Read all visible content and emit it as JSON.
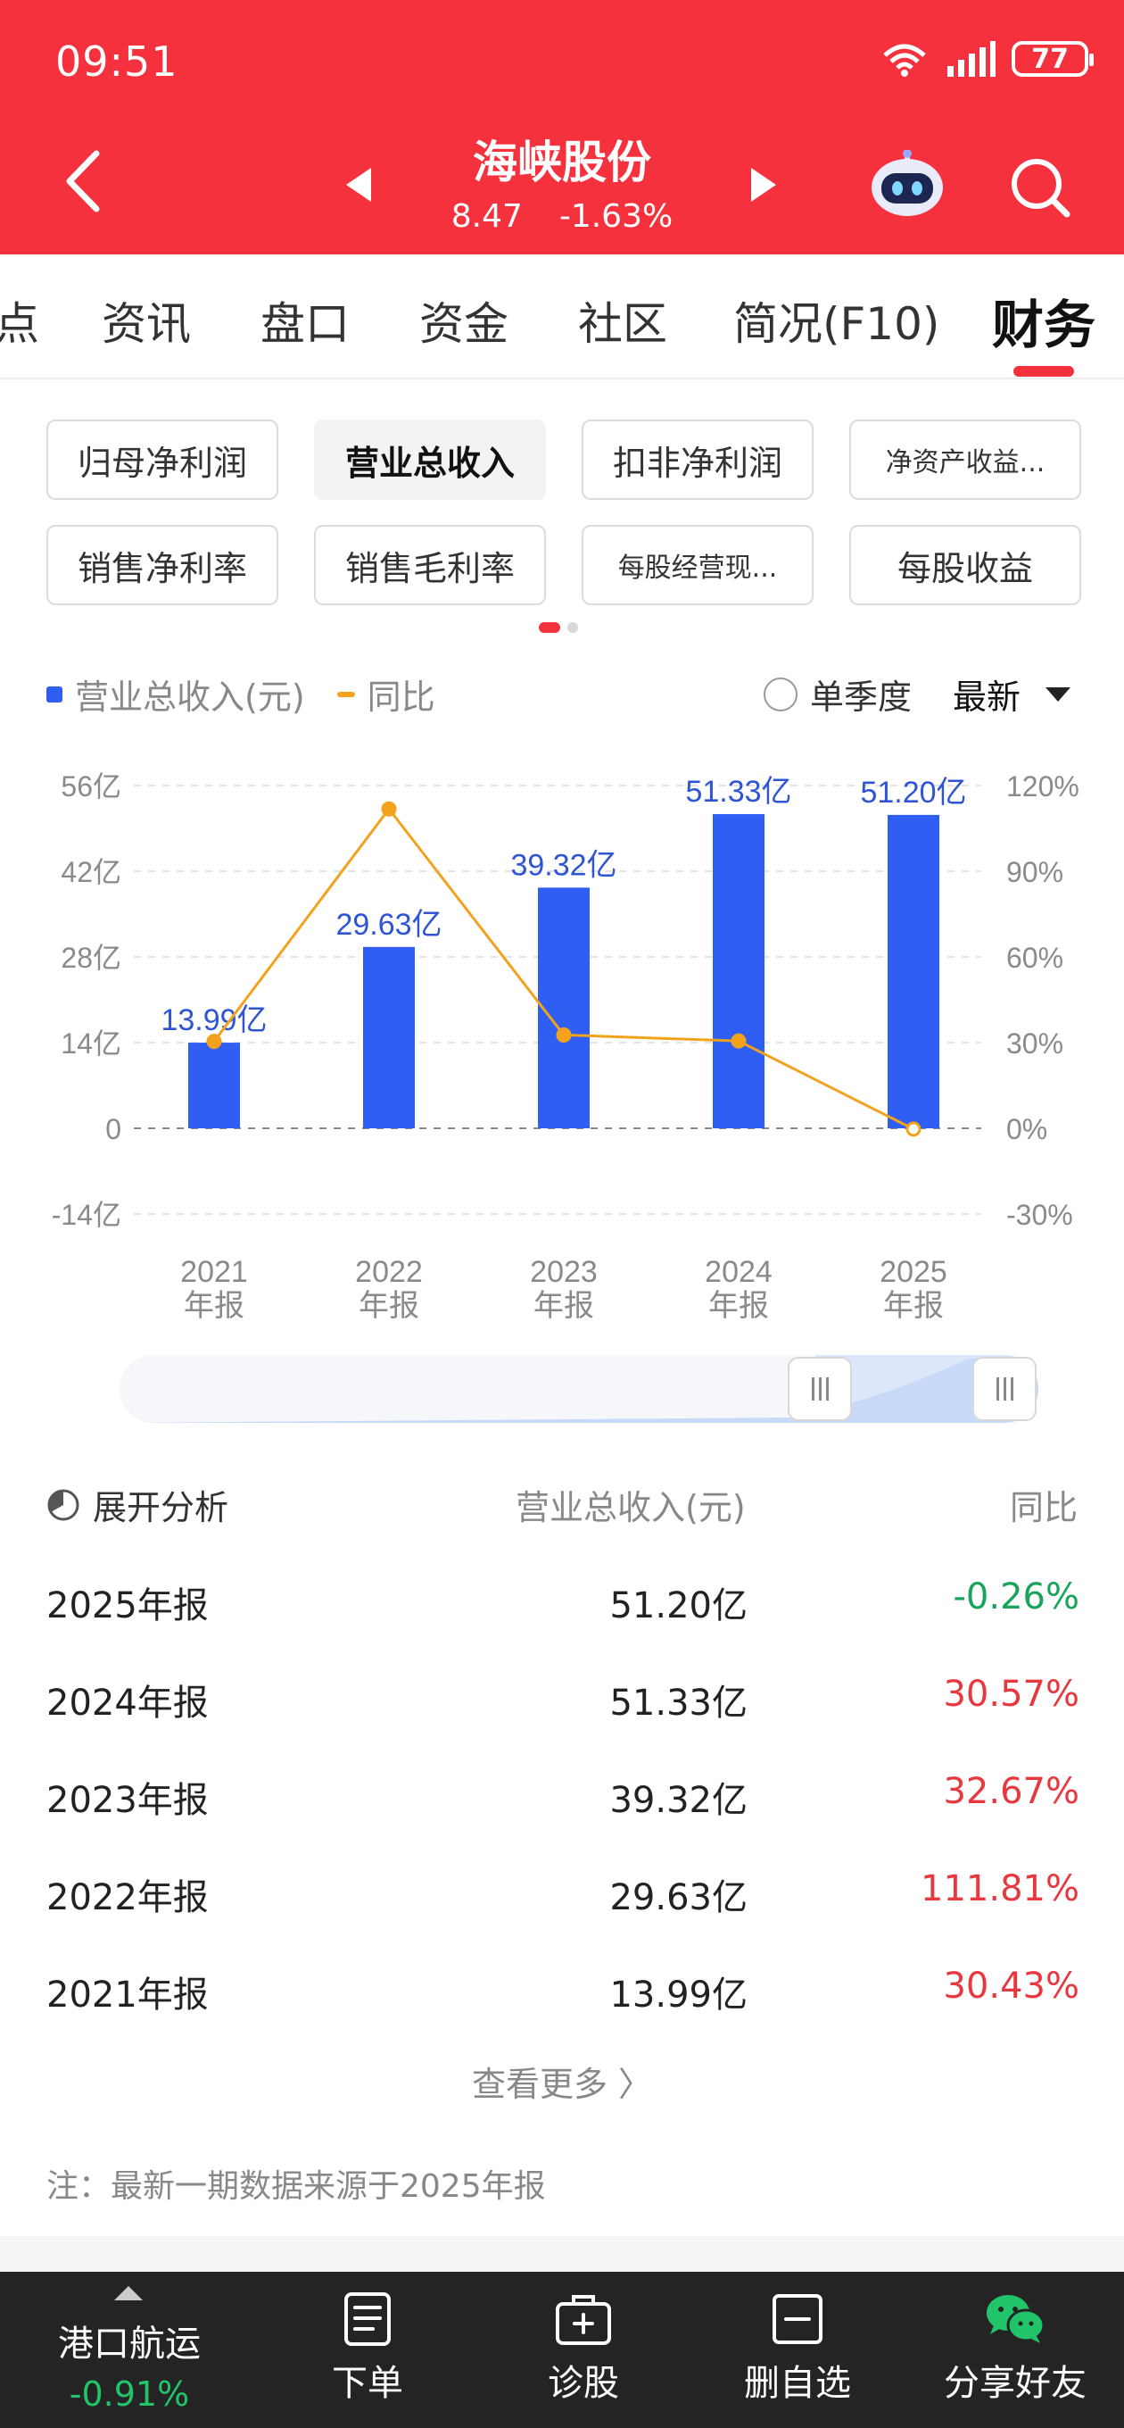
{
  "status": {
    "time": "09:51",
    "battery": "77"
  },
  "header": {
    "name": "海峡股份",
    "price": "8.47",
    "change": "-1.63%"
  },
  "tabs": [
    {
      "label": "点"
    },
    {
      "label": "资讯"
    },
    {
      "label": "盘口"
    },
    {
      "label": "资金"
    },
    {
      "label": "社区"
    },
    {
      "label": "简况(F10)"
    },
    {
      "label": "财务"
    }
  ],
  "chips": [
    {
      "label": "归母净利润"
    },
    {
      "label": "营业总收入"
    },
    {
      "label": "扣非净利润"
    },
    {
      "label": "净资产收益..."
    },
    {
      "label": "销售净利率"
    },
    {
      "label": "销售毛利率"
    },
    {
      "label": "每股经营现..."
    },
    {
      "label": "每股收益"
    }
  ],
  "legend": {
    "bar": "营业总收入(元)",
    "line": "同比",
    "season": "单季度",
    "latest": "最新"
  },
  "chart_data": {
    "type": "bar",
    "categories": [
      "2021\n年报",
      "2022\n年报",
      "2023\n年报",
      "2024\n年报",
      "2025\n年报"
    ],
    "series": [
      {
        "name": "营业总收入(元)",
        "values": [
          13.99,
          29.63,
          39.32,
          51.33,
          51.2
        ],
        "labels": [
          "13.99亿",
          "29.63亿",
          "39.32亿",
          "51.33亿",
          "51.20亿"
        ],
        "color": "#2f5ff2"
      },
      {
        "name": "同比",
        "type": "line",
        "values": [
          30.43,
          111.81,
          32.67,
          30.57,
          -0.26
        ],
        "color": "#f2a21b"
      }
    ],
    "left_ticks": [
      "56亿",
      "42亿",
      "28亿",
      "14亿",
      "0",
      "-14亿"
    ],
    "right_ticks": [
      "120%",
      "90%",
      "60%",
      "30%",
      "0%",
      "-30%"
    ],
    "ylim": [
      -14,
      56
    ],
    "y2lim": [
      -30,
      120
    ]
  },
  "table": {
    "analysis": "展开分析",
    "col_value": "营业总收入(元)",
    "col_yoy": "同比",
    "rows": [
      {
        "period": "2025年报",
        "value": "51.20亿",
        "yoy": "-0.26%"
      },
      {
        "period": "2024年报",
        "value": "51.33亿",
        "yoy": "30.57%"
      },
      {
        "period": "2023年报",
        "value": "39.32亿",
        "yoy": "32.67%"
      },
      {
        "period": "2022年报",
        "value": "29.63亿",
        "yoy": "111.81%"
      },
      {
        "period": "2021年报",
        "value": "13.99亿",
        "yoy": "30.43%"
      }
    ],
    "more": "查看更多 〉",
    "note": "注：最新一期数据来源于2025年报"
  },
  "bottom": {
    "sector": "港口航运",
    "sector_change": "-0.91%",
    "order": "下单",
    "diagnose": "诊股",
    "remove": "删自选",
    "share": "分享好友"
  }
}
